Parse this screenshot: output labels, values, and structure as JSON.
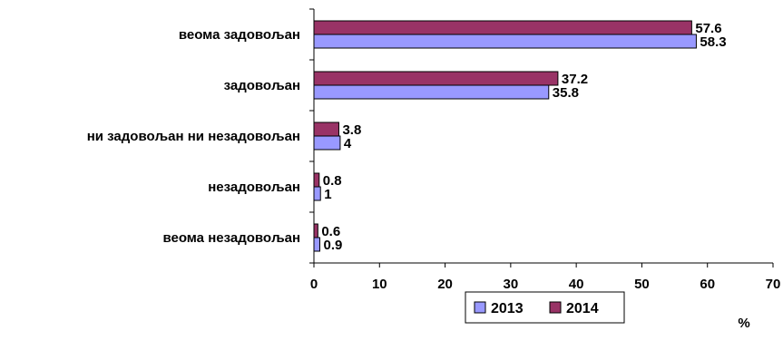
{
  "chart_data": {
    "type": "bar",
    "orientation": "horizontal",
    "title": "",
    "xlabel": "%",
    "ylabel": "",
    "xlim": [
      0,
      70
    ],
    "xticks": [
      0,
      10,
      20,
      30,
      40,
      50,
      60,
      70
    ],
    "grid": false,
    "legend_position": "bottom-right",
    "categories": [
      "веома задовољан",
      "задовољан",
      "ни задовољан ни незадовољан",
      "незадовољан",
      "веома незадовољан"
    ],
    "series": [
      {
        "name": "2013",
        "color": "#9999ff",
        "values": [
          58.3,
          35.8,
          4,
          1,
          0.9
        ]
      },
      {
        "name": "2014",
        "color": "#993366",
        "values": [
          57.6,
          37.2,
          3.8,
          0.8,
          0.6
        ]
      }
    ]
  }
}
